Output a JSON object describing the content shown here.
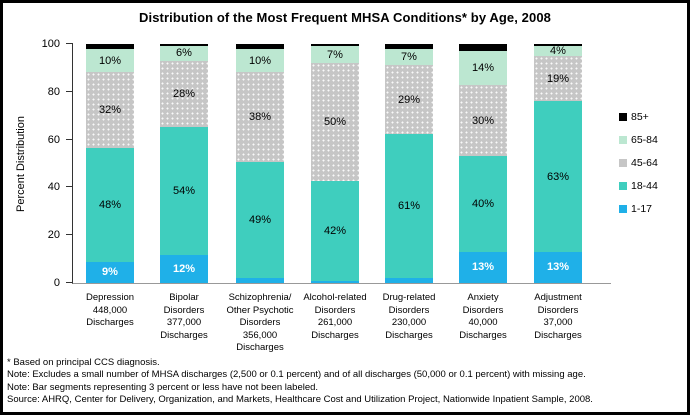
{
  "title": "Distribution of the Most Frequent MHSA Conditions* by Age, 2008",
  "footnotes": [
    "* Based on principal CCS diagnosis.",
    "Note:  Excludes a small number of MHSA discharges (2,500 or 0.1 percent) and of all discharges (50,000 or 0.1 percent) with missing age.",
    "Note: Bar segments representing 3 percent or less have not been labeled.",
    "Source: AHRQ, Center for Delivery, Organization, and Markets, Healthcare Cost and Utilization Project, Nationwide Inpatient Sample, 2008."
  ],
  "legend": {
    "position": "right",
    "items": [
      {
        "label": "85+",
        "color": "#000000"
      },
      {
        "label": "65-84",
        "color": "#BCE7D1"
      },
      {
        "label": "45-64",
        "color": "#C6C6C6"
      },
      {
        "label": "18-44",
        "color": "#3FCEBE"
      },
      {
        "label": "1-17",
        "color": "#1FB0E8"
      }
    ]
  },
  "chart_data": {
    "type": "bar",
    "stacked": true,
    "title": "Distribution of the Most Frequent MHSA Conditions* by Age, 2008",
    "xlabel": "",
    "ylabel": "Percent Distribution",
    "ylim": [
      0,
      100
    ],
    "yticks": [
      0,
      20,
      40,
      60,
      80,
      100
    ],
    "grid": false,
    "legend_position": "right",
    "categories": [
      [
        "Depression",
        "448,000",
        "Discharges"
      ],
      [
        "Bipolar",
        "Disorders",
        "377,000",
        "Discharges"
      ],
      [
        "Schizophrenia/",
        "Other Psychotic",
        "Disorders",
        "356,000",
        "Discharges"
      ],
      [
        "Alcohol-related",
        "Disorders",
        "261,000",
        "Discharges"
      ],
      [
        "Drug-related",
        "Disorders",
        "230,000",
        "Discharges"
      ],
      [
        "Anxiety",
        "Disorders",
        "40,000",
        "Discharges"
      ],
      [
        "Adjustment",
        "Disorders",
        "37,000",
        "Discharges"
      ]
    ],
    "series": [
      {
        "name": "1-17",
        "color": "#1FB0E8",
        "label_style": "white-bold",
        "values": [
          9,
          12,
          2,
          1,
          2,
          13,
          13
        ],
        "labels": [
          "9%",
          "12%",
          "",
          "",
          "",
          "13%",
          "13%"
        ]
      },
      {
        "name": "18-44",
        "color": "#3FCEBE",
        "values": [
          48,
          54,
          49,
          42,
          61,
          40,
          63
        ],
        "labels": [
          "48%",
          "54%",
          "49%",
          "42%",
          "61%",
          "40%",
          "63%"
        ]
      },
      {
        "name": "45-64",
        "color": "#C6C6C6",
        "pattern": "dots",
        "values": [
          32,
          28,
          38,
          50,
          29,
          30,
          19
        ],
        "labels": [
          "32%",
          "28%",
          "38%",
          "50%",
          "29%",
          "30%",
          "19%"
        ]
      },
      {
        "name": "65-84",
        "color": "#BCE7D1",
        "values": [
          10,
          6,
          10,
          7,
          7,
          14,
          4
        ],
        "labels": [
          "10%",
          "6%",
          "10%",
          "7%",
          "7%",
          "14%",
          "4%"
        ]
      },
      {
        "name": "85+",
        "color": "#000000",
        "values": [
          2,
          1,
          2,
          1,
          2,
          3,
          1
        ],
        "labels": [
          "",
          "",
          "",
          "",
          "",
          "",
          ""
        ]
      }
    ]
  }
}
